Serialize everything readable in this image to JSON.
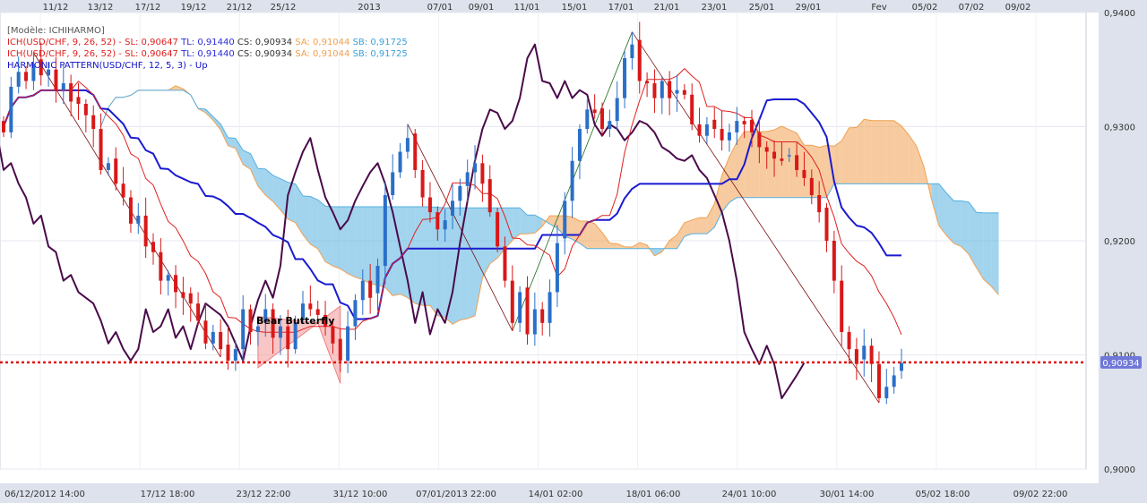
{
  "legend": {
    "model": "[Modèle: ICHIHARMO]",
    "lines": [
      {
        "parts": [
          {
            "text": "ICH(USD/CHF, 9, 26, 52) -  SL: 0,90647",
            "color": "#e02020"
          },
          {
            "text": "TL: 0,91440",
            "color": "#2a2ad8"
          },
          {
            "text": "CS: 0,90934",
            "color": "#333333"
          },
          {
            "text": "SA: 0,91044",
            "color": "#f0a050"
          },
          {
            "text": "SB: 0,91725",
            "color": "#3aa0d8"
          }
        ]
      },
      {
        "parts": [
          {
            "text": "ICH(USD/CHF, 9, 26, 52) -  SL: 0,90647",
            "color": "#e02020"
          },
          {
            "text": "TL: 0,91440",
            "color": "#2a2ad8"
          },
          {
            "text": "CS: 0,90934",
            "color": "#333333"
          },
          {
            "text": "SA: 0,91044",
            "color": "#f0a050"
          },
          {
            "text": "SB: 0,91725",
            "color": "#3aa0d8"
          }
        ]
      },
      {
        "parts": [
          {
            "text": "HARMONIC PATTERN(USD/CHF, 12, 5, 3) -  Up",
            "color": "#1010c8"
          }
        ]
      }
    ]
  },
  "chart_data": {
    "type": "candlestick",
    "symbol": "USD/CHF",
    "ylim": [
      0.9,
      0.94
    ],
    "y_ticks": [
      "0,9000",
      "0,9100",
      "0,9200",
      "0,9300",
      "0,9400"
    ],
    "top_ticks": [
      "11/12",
      "13/12",
      "17/12",
      "19/12",
      "21/12",
      "25/12",
      "2013",
      "07/01",
      "09/01",
      "11/01",
      "15/01",
      "17/01",
      "21/01",
      "23/01",
      "25/01",
      "29/01",
      "Fev",
      "05/02",
      "07/02",
      "09/02"
    ],
    "bottom_ticks": [
      "06/12/2012 14:00",
      "17/12 18:00",
      "23/12 22:00",
      "31/12 10:00",
      "07/01/2013 22:00",
      "14/01 02:00",
      "18/01 06:00",
      "24/01 10:00",
      "30/01 14:00",
      "05/02 18:00",
      "09/02 22:00"
    ],
    "last_price": "0,90934",
    "price_line": 0.90934,
    "pattern_label": "Bear Butterfly",
    "colors": {
      "up": "#2a6fc8",
      "down": "#d81818",
      "kijun": "#1a1ad0",
      "tenkan": "#e02020",
      "chikou": "#4a0a4a",
      "kumo_bull": "#f0a050",
      "kumo_bear": "#55b0e0",
      "price_line": "#e01010"
    },
    "close": [
      0.9295,
      0.9335,
      0.9348,
      0.934,
      0.9355,
      0.9345,
      0.935,
      0.9332,
      0.9338,
      0.9322,
      0.932,
      0.931,
      0.9298,
      0.9262,
      0.9268,
      0.925,
      0.9238,
      0.9215,
      0.9222,
      0.9195,
      0.919,
      0.9165,
      0.917,
      0.9155,
      0.915,
      0.9145,
      0.913,
      0.911,
      0.912,
      0.9105,
      0.9095,
      0.9105,
      0.914,
      0.912,
      0.9125,
      0.914,
      0.9115,
      0.9125,
      0.9105,
      0.9128,
      0.9145,
      0.914,
      0.9135,
      0.9125,
      0.911,
      0.9095,
      0.9125,
      0.9148,
      0.9165,
      0.915,
      0.9178,
      0.924,
      0.926,
      0.9278,
      0.929,
      0.9262,
      0.9238,
      0.9225,
      0.921,
      0.9218,
      0.9235,
      0.9248,
      0.926,
      0.9268,
      0.925,
      0.9225,
      0.9195,
      0.9165,
      0.9128,
      0.9155,
      0.9118,
      0.914,
      0.9128,
      0.9155,
      0.9198,
      0.9235,
      0.927,
      0.9298,
      0.9315,
      0.9312,
      0.9298,
      0.9305,
      0.9325,
      0.936,
      0.9372,
      0.934,
      0.9338,
      0.9325,
      0.934,
      0.9325,
      0.9332,
      0.9328,
      0.9302,
      0.9292,
      0.9302,
      0.9298,
      0.9288,
      0.9295,
      0.9305,
      0.9302,
      0.9295,
      0.9282,
      0.9278,
      0.9272,
      0.927,
      0.9275,
      0.9262,
      0.9255,
      0.924,
      0.9225,
      0.92,
      0.9165,
      0.912,
      0.9105,
      0.9092,
      0.9108,
      0.9092,
      0.9062,
      0.9072,
      0.9082,
      0.9093
    ]
  }
}
